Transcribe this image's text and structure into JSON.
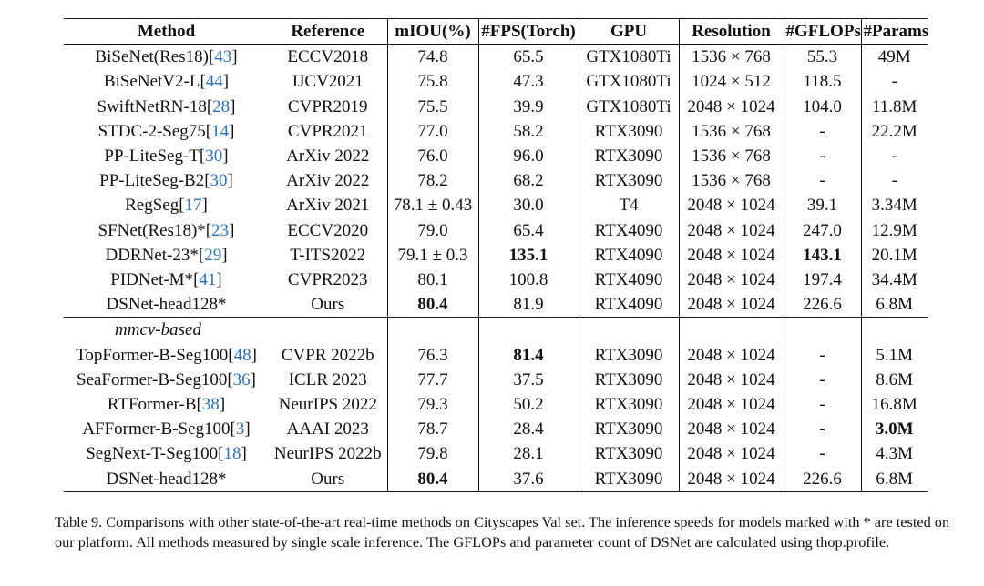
{
  "columns": [
    "Method",
    "Reference",
    "mIOU(%)",
    "#FPS(Torch)",
    "GPU",
    "Resolution",
    "#GFLOPs",
    "#Params"
  ],
  "group_a": [
    {
      "name": "BiSeNet(Res18)",
      "cite": "43",
      "ref": "ECCV2018",
      "miou": "74.8",
      "fps": "65.5",
      "gpu": "GTX1080Ti",
      "res": "1536 × 768",
      "gflops": "55.3",
      "params": "49M"
    },
    {
      "name": "BiSeNetV2-L",
      "cite": "44",
      "ref": "IJCV2021",
      "miou": "75.8",
      "fps": "47.3",
      "gpu": "GTX1080Ti",
      "res": "1024 × 512",
      "gflops": "118.5",
      "params": "-"
    },
    {
      "name": "SwiftNetRN-18",
      "cite": "28",
      "ref": "CVPR2019",
      "miou": "75.5",
      "fps": "39.9",
      "gpu": "GTX1080Ti",
      "res": "2048 × 1024",
      "gflops": "104.0",
      "params": "11.8M"
    },
    {
      "name": "STDC-2-Seg75",
      "cite": "14",
      "ref": "CVPR2021",
      "miou": "77.0",
      "fps": "58.2",
      "gpu": "RTX3090",
      "res": "1536 × 768",
      "gflops": "-",
      "params": "22.2M"
    },
    {
      "name": "PP-LiteSeg-T",
      "cite": "30",
      "ref": "ArXiv 2022",
      "miou": "76.0",
      "fps": "96.0",
      "gpu": "RTX3090",
      "res": "1536 × 768",
      "gflops": "-",
      "params": "-"
    },
    {
      "name": "PP-LiteSeg-B2",
      "cite": "30",
      "ref": "ArXiv 2022",
      "miou": "78.2",
      "fps": "68.2",
      "gpu": "RTX3090",
      "res": "1536 × 768",
      "gflops": "-",
      "params": "-"
    },
    {
      "name": "RegSeg",
      "cite": "17",
      "ref": "ArXiv 2021",
      "miou": "78.1 ± 0.43",
      "fps": "30.0",
      "gpu": "T4",
      "res": "2048 × 1024",
      "gflops": "39.1",
      "params": "3.34M"
    },
    {
      "name": "SFNet(Res18)*",
      "cite": "23",
      "ref": "ECCV2020",
      "miou": "79.0",
      "fps": "65.4",
      "gpu": "RTX4090",
      "res": "2048 × 1024",
      "gflops": "247.0",
      "params": "12.9M"
    },
    {
      "name": "DDRNet-23*",
      "cite": "29",
      "ref": "T-ITS2022",
      "miou": "79.1 ± 0.3",
      "fps": "135.1",
      "gpu": "RTX4090",
      "res": "2048 × 1024",
      "gflops": "143.1",
      "params": "20.1M",
      "bold": [
        "fps",
        "gflops"
      ]
    },
    {
      "name": "PIDNet-M*",
      "cite": "41",
      "ref": "CVPR2023",
      "miou": "80.1",
      "fps": "100.8",
      "gpu": "RTX4090",
      "res": "2048 × 1024",
      "gflops": "197.4",
      "params": "34.4M"
    },
    {
      "name": "DSNet-head128*",
      "cite": "",
      "ref": "Ours",
      "miou": "80.4",
      "fps": "81.9",
      "gpu": "RTX4090",
      "res": "2048 × 1024",
      "gflops": "226.6",
      "params": "6.8M",
      "bold": [
        "miou"
      ]
    }
  ],
  "group_b_label": "mmcv-based",
  "group_b": [
    {
      "name": "TopFormer-B-Seg100",
      "cite": "48",
      "ref": "CVPR 2022b",
      "miou": "76.3",
      "fps": "81.4",
      "gpu": "RTX3090",
      "res": "2048 × 1024",
      "gflops": "-",
      "params": "5.1M",
      "bold": [
        "fps"
      ]
    },
    {
      "name": "SeaFormer-B-Seg100",
      "cite": "36",
      "ref": "ICLR 2023",
      "miou": "77.7",
      "fps": "37.5",
      "gpu": "RTX3090",
      "res": "2048 × 1024",
      "gflops": "-",
      "params": "8.6M"
    },
    {
      "name": "RTFormer-B",
      "cite": "38",
      "ref": "NeurIPS 2022",
      "miou": "79.3",
      "fps": "50.2",
      "gpu": "RTX3090",
      "res": "2048 × 1024",
      "gflops": "-",
      "params": "16.8M"
    },
    {
      "name": "AFFormer-B-Seg100",
      "cite": "3",
      "ref": "AAAI 2023",
      "miou": "78.7",
      "fps": "28.4",
      "gpu": "RTX3090",
      "res": "2048 × 1024",
      "gflops": "-",
      "params": "3.0M",
      "bold": [
        "params"
      ]
    },
    {
      "name": "SegNext-T-Seg100",
      "cite": "18",
      "ref": "NeurIPS 2022b",
      "miou": "79.8",
      "fps": "28.1",
      "gpu": "RTX3090",
      "res": "2048 × 1024",
      "gflops": "-",
      "params": "4.3M"
    },
    {
      "name": "DSNet-head128*",
      "cite": "",
      "ref": "Ours",
      "miou": "80.4",
      "fps": "37.6",
      "gpu": "RTX3090",
      "res": "2048 × 1024",
      "gflops": "226.6",
      "params": "6.8M",
      "bold": [
        "miou"
      ]
    }
  ],
  "caption": "Table 9. Comparisons with other state-of-the-art real-time methods on Cityscapes Val set. The inference speeds for models marked with * are tested on our platform. All methods measured by single scale inference. The GFLOPs and parameter count of DSNet are calculated using thop.profile.",
  "colors": {
    "citation": "#2a6fb8",
    "text": "#111111"
  }
}
